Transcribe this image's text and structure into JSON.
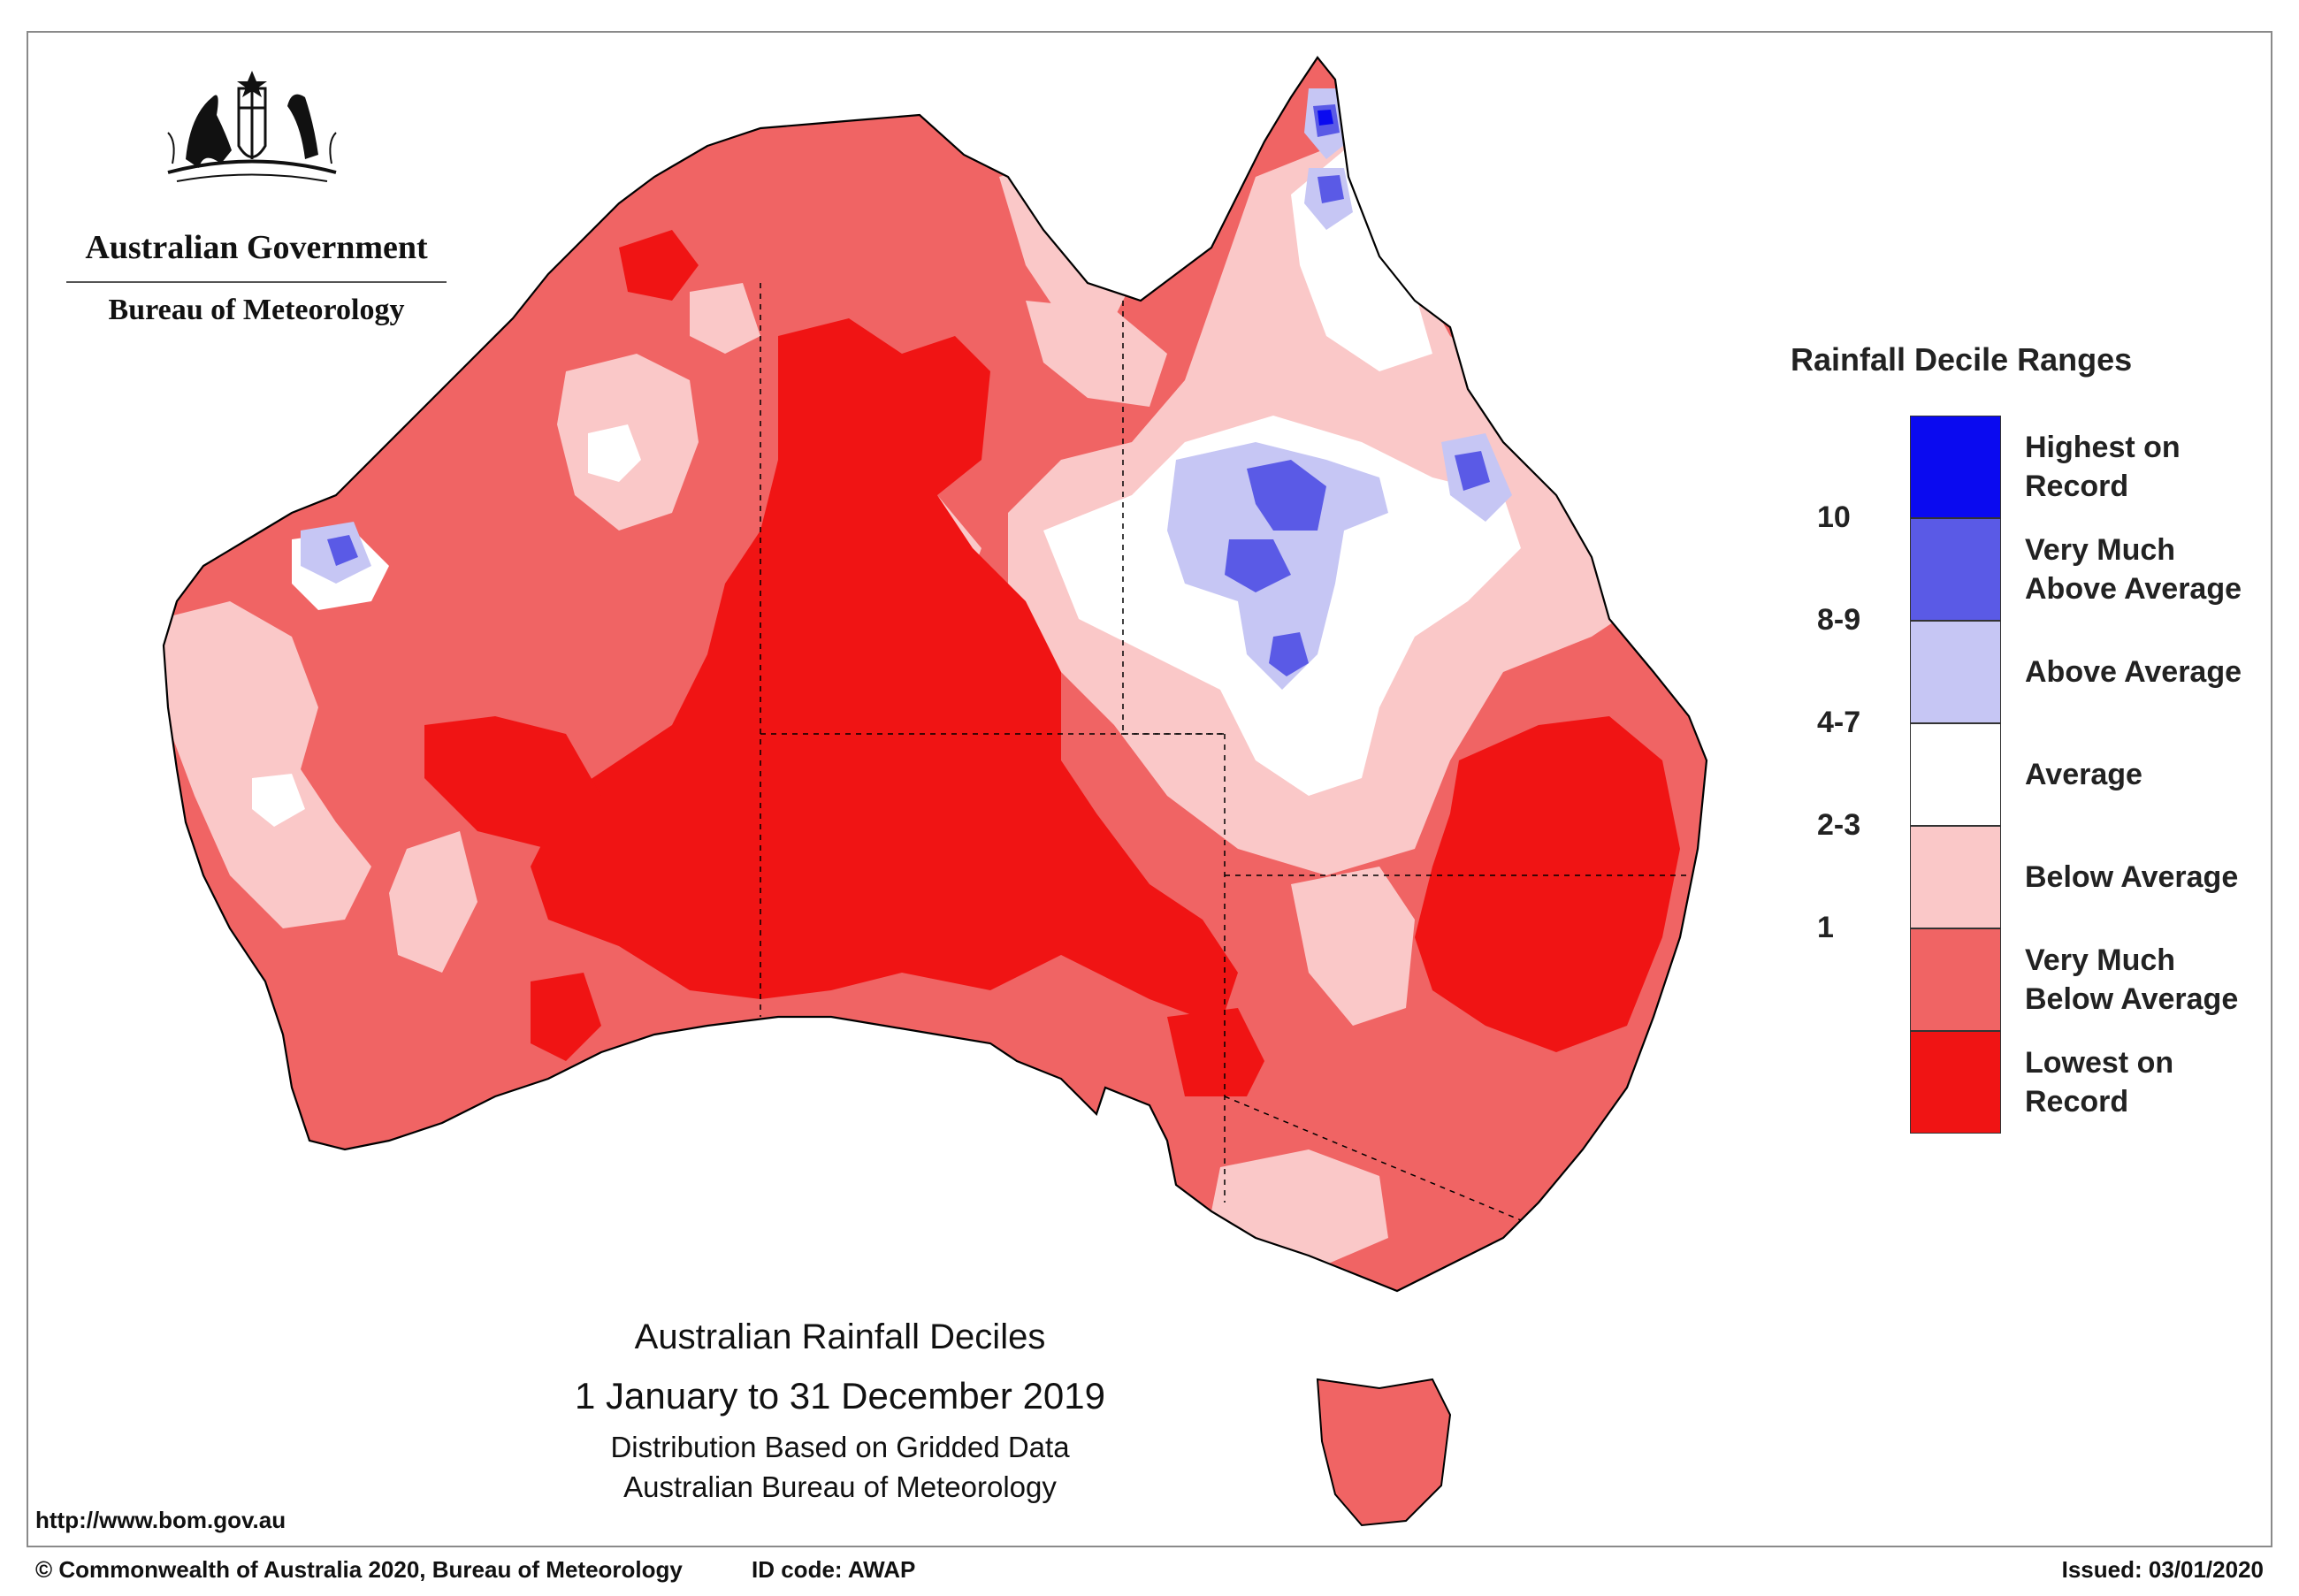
{
  "header": {
    "government": "Australian Government",
    "agency": "Bureau of Meteorology"
  },
  "legend": {
    "title": "Rainfall Decile Ranges",
    "items": [
      {
        "decile": "",
        "label": "Highest on\nRecord",
        "color": "#0a0af0"
      },
      {
        "decile": "10",
        "label": "Very Much\nAbove Average",
        "color": "#5a5ae6"
      },
      {
        "decile": "8-9",
        "label": "Above Average",
        "color": "#c6c6f4"
      },
      {
        "decile": "4-7",
        "label": "Average",
        "color": "#ffffff"
      },
      {
        "decile": "2-3",
        "label": "Below Average",
        "color": "#fac8c8"
      },
      {
        "decile": "1",
        "label": "Very Much\nBelow Average",
        "color": "#f06464"
      },
      {
        "decile": "",
        "label": "Lowest on\nRecord",
        "color": "#f01414"
      }
    ]
  },
  "caption": {
    "title": "Australian Rainfall Deciles",
    "dates": "1 January to 31 December 2019",
    "distribution": "Distribution Based on Gridded Data",
    "source": "Australian Bureau of Meteorology"
  },
  "footer": {
    "url": "http://www.bom.gov.au",
    "copyright": "© Commonwealth of Australia 2020, Bureau of Meteorology",
    "id_code": "ID code: AWAP",
    "issued": "Issued: 03/01/2020"
  }
}
